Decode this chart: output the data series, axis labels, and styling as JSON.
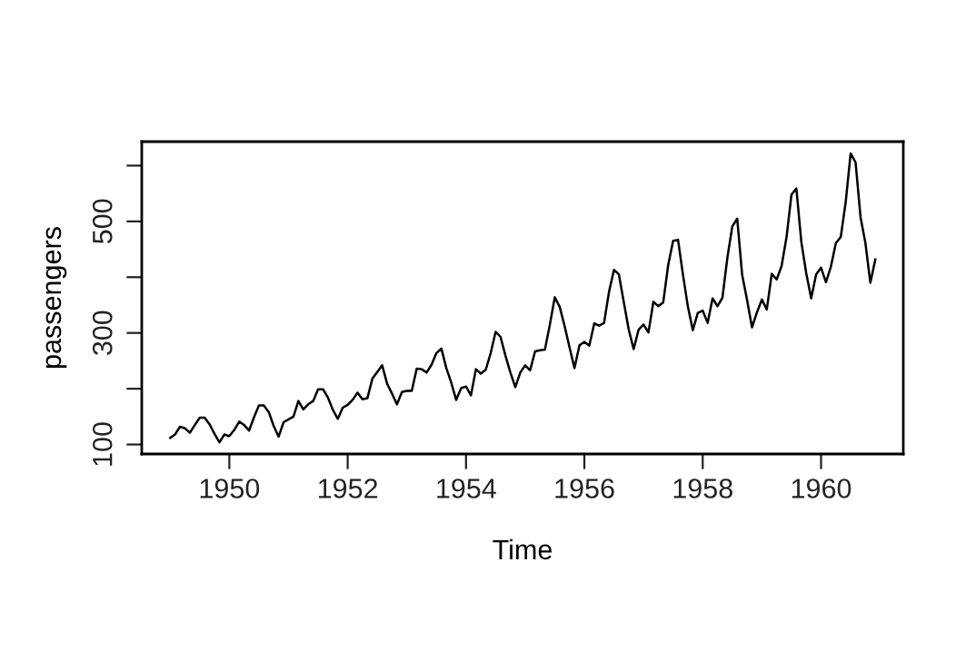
{
  "chart_data": {
    "type": "line",
    "xlabel": "Time",
    "ylabel": "passengers",
    "x": [
      1949,
      1949.083,
      1949.167,
      1949.25,
      1949.333,
      1949.417,
      1949.5,
      1949.583,
      1949.667,
      1949.75,
      1949.833,
      1949.917,
      1950,
      1950.083,
      1950.167,
      1950.25,
      1950.333,
      1950.417,
      1950.5,
      1950.583,
      1950.667,
      1950.75,
      1950.833,
      1950.917,
      1951,
      1951.083,
      1951.167,
      1951.25,
      1951.333,
      1951.417,
      1951.5,
      1951.583,
      1951.667,
      1951.75,
      1951.833,
      1951.917,
      1952,
      1952.083,
      1952.167,
      1952.25,
      1952.333,
      1952.417,
      1952.5,
      1952.583,
      1952.667,
      1952.75,
      1952.833,
      1952.917,
      1953,
      1953.083,
      1953.167,
      1953.25,
      1953.333,
      1953.417,
      1953.5,
      1953.583,
      1953.667,
      1953.75,
      1953.833,
      1953.917,
      1954,
      1954.083,
      1954.167,
      1954.25,
      1954.333,
      1954.417,
      1954.5,
      1954.583,
      1954.667,
      1954.75,
      1954.833,
      1954.917,
      1955,
      1955.083,
      1955.167,
      1955.25,
      1955.333,
      1955.417,
      1955.5,
      1955.583,
      1955.667,
      1955.75,
      1955.833,
      1955.917,
      1956,
      1956.083,
      1956.167,
      1956.25,
      1956.333,
      1956.417,
      1956.5,
      1956.583,
      1956.667,
      1956.75,
      1956.833,
      1956.917,
      1957,
      1957.083,
      1957.167,
      1957.25,
      1957.333,
      1957.417,
      1957.5,
      1957.583,
      1957.667,
      1957.75,
      1957.833,
      1957.917,
      1958,
      1958.083,
      1958.167,
      1958.25,
      1958.333,
      1958.417,
      1958.5,
      1958.583,
      1958.667,
      1958.75,
      1958.833,
      1958.917,
      1959,
      1959.083,
      1959.167,
      1959.25,
      1959.333,
      1959.417,
      1959.5,
      1959.583,
      1959.667,
      1959.75,
      1959.833,
      1959.917,
      1960,
      1960.083,
      1960.167,
      1960.25,
      1960.333,
      1960.417,
      1960.5,
      1960.583,
      1960.667,
      1960.75,
      1960.833,
      1960.917
    ],
    "series": [
      {
        "color": "#000000",
        "values": [
          112,
          118,
          132,
          129,
          121,
          135,
          148,
          148,
          136,
          119,
          104,
          118,
          115,
          126,
          141,
          135,
          125,
          149,
          170,
          170,
          158,
          133,
          114,
          140,
          145,
          150,
          178,
          163,
          172,
          178,
          199,
          199,
          184,
          162,
          146,
          166,
          171,
          180,
          193,
          181,
          183,
          218,
          230,
          242,
          209,
          191,
          172,
          194,
          196,
          196,
          236,
          235,
          229,
          243,
          264,
          272,
          237,
          211,
          180,
          201,
          204,
          188,
          235,
          227,
          234,
          264,
          302,
          293,
          259,
          229,
          203,
          229,
          242,
          233,
          267,
          269,
          270,
          315,
          364,
          347,
          312,
          274,
          237,
          278,
          284,
          277,
          317,
          313,
          318,
          374,
          413,
          405,
          355,
          306,
          271,
          306,
          315,
          301,
          356,
          348,
          355,
          422,
          465,
          467,
          404,
          347,
          305,
          336,
          340,
          318,
          362,
          348,
          363,
          435,
          491,
          505,
          404,
          359,
          310,
          337,
          360,
          342,
          406,
          396,
          420,
          472,
          548,
          559,
          463,
          407,
          362,
          405,
          417,
          391,
          419,
          461,
          472,
          535,
          622,
          606,
          508,
          461,
          390,
          432
        ]
      }
    ],
    "xlim": [
      1948.52,
      1961.39
    ],
    "ylim": [
      83,
      643
    ],
    "xticks": [
      1950,
      1952,
      1954,
      1956,
      1958,
      1960
    ],
    "yticks": [
      100,
      {
        "value": 200,
        "label": null
      },
      300,
      {
        "value": 400,
        "label": null
      },
      500,
      {
        "value": 600,
        "label": null
      }
    ],
    "grid": false,
    "marker": "none",
    "line_style": "solid"
  }
}
